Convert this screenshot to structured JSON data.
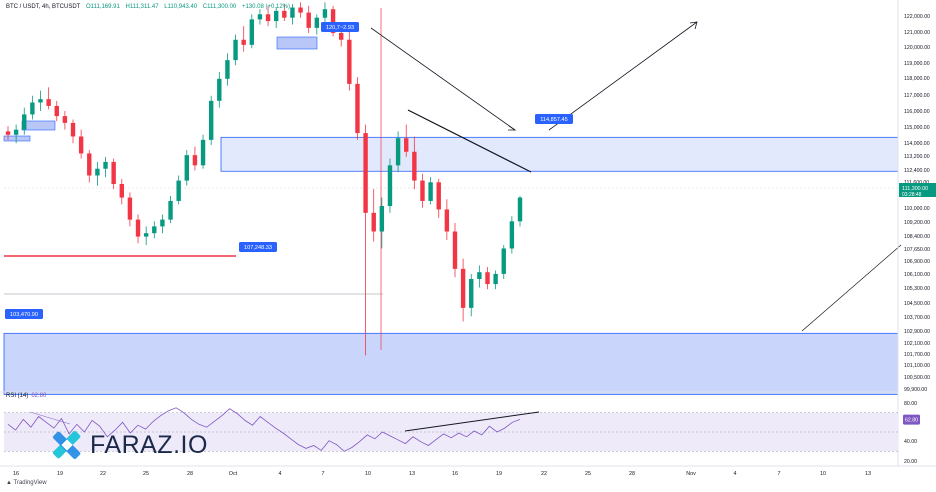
{
  "header": {
    "symbol": "BTC / USDT, 4h, BTCUSDT",
    "open": "O111,169.91",
    "high": "H111,311.47",
    "low": "L110,943.40",
    "close": "C111,300.00",
    "change": "+130.08 (+0.12%)"
  },
  "rsi": {
    "label": "RSI (14)",
    "value": "62.80"
  },
  "brand": {
    "name": "FARAZ.IO",
    "tv": "TradingView"
  },
  "colors": {
    "up": "#089981",
    "down": "#f23645",
    "zone": "#2962ff",
    "rsi": "#7e57c2",
    "zone_fill": "#dfe6fd"
  },
  "chart_data": {
    "type": "candlestick",
    "price_axis": [
      "122,000.00",
      "121,000.00",
      "120,000.00",
      "119,000.00",
      "118,000.00",
      "117,000.00",
      "116,000.00",
      "115,000.00",
      "114,000.00",
      "113,200.00",
      "112,400.00",
      "111,600.00",
      "110,000.00",
      "109,200.00",
      "108,400.00",
      "107,650.00",
      "106,900.00",
      "106,100.00",
      "105,300.00",
      "104,500.00",
      "103,700.00",
      "102,900.00",
      "102,100.00",
      "101,700.00",
      "101,100.00",
      "100,500.00",
      "99,900.00"
    ],
    "last_price": {
      "value": "111,300.00",
      "countdown": "03:28:48"
    },
    "time_axis": [
      "16",
      "19",
      "22",
      "25",
      "28",
      "Oct",
      "4",
      "7",
      "10",
      "13",
      "16",
      "19",
      "22",
      "25",
      "28",
      "Nov",
      "4",
      "7",
      "10",
      "13"
    ],
    "rsi_axis": [
      "80.00",
      "60.00",
      "40.00",
      "20.00"
    ],
    "rsi_value_badge": "62.80",
    "labels": [
      {
        "text": "120,7~2.93",
        "price": 120700
      },
      {
        "text": "114,857.45",
        "price": 114857
      },
      {
        "text": "107,248.33",
        "price": 107248
      },
      {
        "text": "103,470.90",
        "price": 103471
      }
    ],
    "zones": [
      {
        "top": 114850,
        "bottom": 112850
      },
      {
        "top": 103300,
        "bottom": 99700
      }
    ],
    "ohlc_4h_approx": [
      [
        115200,
        115500,
        114700,
        115000
      ],
      [
        115000,
        115600,
        114500,
        115300
      ],
      [
        115300,
        116600,
        115000,
        116200
      ],
      [
        116200,
        117300,
        115900,
        116900
      ],
      [
        116900,
        117600,
        116400,
        117100
      ],
      [
        117100,
        117800,
        116500,
        116700
      ],
      [
        116700,
        117000,
        115800,
        116100
      ],
      [
        116100,
        116400,
        115300,
        115700
      ],
      [
        115700,
        115900,
        114500,
        114900
      ],
      [
        114900,
        115300,
        113600,
        113900
      ],
      [
        113900,
        114100,
        112200,
        112600
      ],
      [
        112600,
        113400,
        112000,
        113000
      ],
      [
        113000,
        113700,
        112500,
        113400
      ],
      [
        113400,
        113600,
        111800,
        112100
      ],
      [
        112100,
        112400,
        110900,
        111300
      ],
      [
        111300,
        111600,
        109600,
        110000
      ],
      [
        110000,
        110300,
        108600,
        109000
      ],
      [
        109000,
        109600,
        108500,
        109200
      ],
      [
        109200,
        109900,
        108900,
        109600
      ],
      [
        109600,
        110300,
        109200,
        110000
      ],
      [
        110000,
        111400,
        109800,
        111100
      ],
      [
        111100,
        112600,
        110900,
        112300
      ],
      [
        112300,
        114100,
        112000,
        113800
      ],
      [
        113800,
        114300,
        112900,
        113200
      ],
      [
        113200,
        115000,
        113000,
        114700
      ],
      [
        114700,
        117300,
        114400,
        117000
      ],
      [
        117000,
        118700,
        116600,
        118300
      ],
      [
        118300,
        119800,
        117900,
        119400
      ],
      [
        119400,
        120900,
        119100,
        120600
      ],
      [
        120600,
        121400,
        119900,
        120300
      ],
      [
        120300,
        122100,
        120100,
        121800
      ],
      [
        121800,
        122400,
        121500,
        122100
      ],
      [
        122100,
        122600,
        121400,
        121700
      ],
      [
        121700,
        122500,
        121300,
        122300
      ],
      [
        122300,
        122700,
        121700,
        121900
      ],
      [
        121900,
        122700,
        121500,
        122500
      ],
      [
        122500,
        122800,
        121900,
        122200
      ],
      [
        122200,
        122600,
        121000,
        121300
      ],
      [
        121300,
        122100,
        120900,
        121900
      ],
      [
        121900,
        122800,
        121600,
        122400
      ],
      [
        122400,
        122600,
        120800,
        121000
      ],
      [
        121000,
        121600,
        120200,
        120600
      ],
      [
        120600,
        121100,
        117600,
        118000
      ],
      [
        118000,
        118400,
        114700,
        115100
      ],
      [
        115100,
        115600,
        102000,
        110400
      ],
      [
        110400,
        111800,
        108700,
        109300
      ],
      [
        109300,
        111300,
        108300,
        110800
      ],
      [
        110800,
        113600,
        110400,
        113200
      ],
      [
        113200,
        115200,
        112800,
        114800
      ],
      [
        114800,
        115600,
        113700,
        114000
      ],
      [
        114000,
        114900,
        111800,
        112300
      ],
      [
        112300,
        112700,
        110700,
        111100
      ],
      [
        111100,
        112500,
        110900,
        112200
      ],
      [
        112200,
        112400,
        110100,
        110600
      ],
      [
        110600,
        111200,
        108800,
        109300
      ],
      [
        109300,
        109800,
        106600,
        107100
      ],
      [
        107100,
        107700,
        104000,
        104800
      ],
      [
        104800,
        106800,
        104300,
        106500
      ],
      [
        106500,
        107300,
        106000,
        106900
      ],
      [
        106900,
        107200,
        105900,
        106200
      ],
      [
        106200,
        107000,
        105900,
        106800
      ],
      [
        106800,
        108500,
        106500,
        108300
      ],
      [
        108300,
        110200,
        108000,
        109900
      ],
      [
        109900,
        111400,
        109600,
        111300
      ]
    ]
  }
}
